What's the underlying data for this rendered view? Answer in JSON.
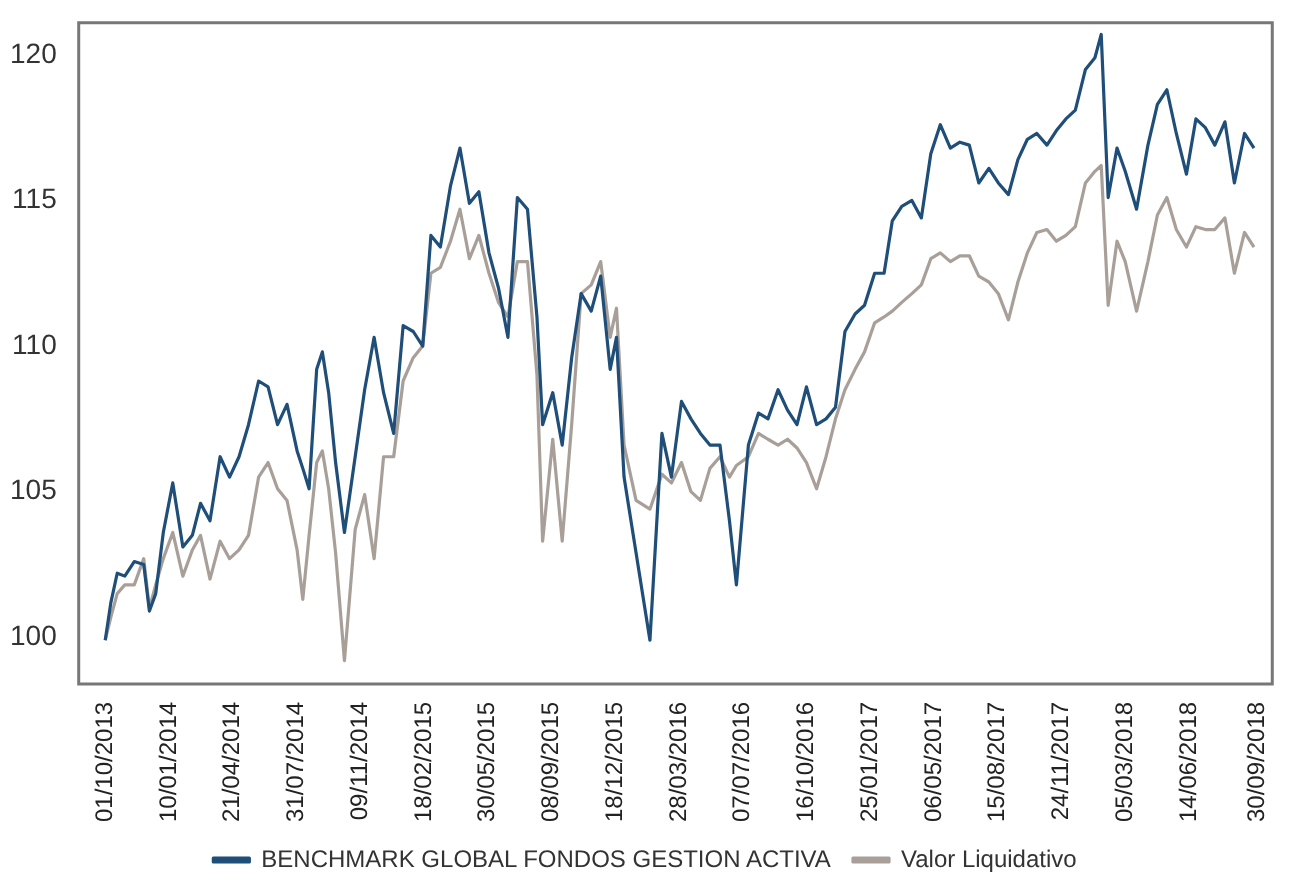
{
  "chart_data": {
    "type": "line",
    "legend": "bottom",
    "grid": false,
    "marker": "none",
    "line_style": "solid",
    "xlim": [
      "2013-08-20",
      "2018-10-24"
    ],
    "ylim": [
      98.4,
      121.1
    ],
    "yticks": [
      100,
      105,
      110,
      115,
      120
    ],
    "xticks": [
      {
        "value": "2013-10-01",
        "label": "01/10/2013"
      },
      {
        "value": "2014-01-10",
        "label": "10/01/2014"
      },
      {
        "value": "2014-04-21",
        "label": "21/04/2014"
      },
      {
        "value": "2014-07-31",
        "label": "31/07/2014"
      },
      {
        "value": "2014-11-09",
        "label": "09/11/2014"
      },
      {
        "value": "2015-02-18",
        "label": "18/02/2015"
      },
      {
        "value": "2015-05-30",
        "label": "30/05/2015"
      },
      {
        "value": "2015-09-08",
        "label": "08/09/2015"
      },
      {
        "value": "2015-12-18",
        "label": "18/12/2015"
      },
      {
        "value": "2016-03-28",
        "label": "28/03/2016"
      },
      {
        "value": "2016-07-07",
        "label": "07/07/2016"
      },
      {
        "value": "2016-10-16",
        "label": "16/10/2016"
      },
      {
        "value": "2017-01-25",
        "label": "25/01/2017"
      },
      {
        "value": "2017-05-06",
        "label": "06/05/2017"
      },
      {
        "value": "2017-08-15",
        "label": "15/08/2017"
      },
      {
        "value": "2017-11-24",
        "label": "24/11/2017"
      },
      {
        "value": "2018-03-05",
        "label": "05/03/2018"
      },
      {
        "value": "2018-06-14",
        "label": "14/06/2018"
      },
      {
        "value": "2018-09-30",
        "label": "30/09/2018"
      }
    ],
    "x": [
      "2013-10-01",
      "2013-10-10",
      "2013-10-20",
      "2013-11-01",
      "2013-11-16",
      "2013-12-01",
      "2013-12-10",
      "2013-12-20",
      "2014-01-01",
      "2014-01-16",
      "2014-02-01",
      "2014-02-16",
      "2014-03-01",
      "2014-03-16",
      "2014-04-01",
      "2014-04-16",
      "2014-05-01",
      "2014-05-16",
      "2014-06-01",
      "2014-06-16",
      "2014-07-01",
      "2014-07-16",
      "2014-08-01",
      "2014-08-10",
      "2014-08-20",
      "2014-09-01",
      "2014-09-10",
      "2014-09-20",
      "2014-10-01",
      "2014-10-15",
      "2014-11-01",
      "2014-11-16",
      "2014-12-01",
      "2014-12-16",
      "2015-01-01",
      "2015-01-16",
      "2015-02-01",
      "2015-02-16",
      "2015-03-01",
      "2015-03-16",
      "2015-04-01",
      "2015-04-16",
      "2015-05-01",
      "2015-05-16",
      "2015-06-01",
      "2015-06-16",
      "2015-07-01",
      "2015-07-16",
      "2015-08-01",
      "2015-08-16",
      "2015-08-25",
      "2015-09-10",
      "2015-09-25",
      "2015-10-10",
      "2015-10-25",
      "2015-11-10",
      "2015-11-25",
      "2015-12-10",
      "2015-12-20",
      "2016-01-01",
      "2016-01-20",
      "2016-02-11",
      "2016-03-01",
      "2016-03-16",
      "2016-04-01",
      "2016-04-16",
      "2016-05-01",
      "2016-05-16",
      "2016-06-01",
      "2016-06-16",
      "2016-06-27",
      "2016-07-16",
      "2016-08-01",
      "2016-08-16",
      "2016-09-01",
      "2016-09-16",
      "2016-10-01",
      "2016-10-16",
      "2016-11-01",
      "2016-11-16",
      "2016-12-01",
      "2016-12-16",
      "2017-01-01",
      "2017-01-16",
      "2017-02-01",
      "2017-02-16",
      "2017-03-01",
      "2017-03-16",
      "2017-04-01",
      "2017-04-16",
      "2017-05-01",
      "2017-05-16",
      "2017-06-01",
      "2017-06-16",
      "2017-07-01",
      "2017-07-16",
      "2017-08-01",
      "2017-08-16",
      "2017-09-01",
      "2017-09-16",
      "2017-10-01",
      "2017-10-16",
      "2017-11-01",
      "2017-11-16",
      "2017-12-01",
      "2017-12-16",
      "2018-01-01",
      "2018-01-16",
      "2018-01-26",
      "2018-02-06",
      "2018-02-20",
      "2018-03-05",
      "2018-03-23",
      "2018-04-10",
      "2018-04-25",
      "2018-05-10",
      "2018-05-25",
      "2018-06-10",
      "2018-06-25",
      "2018-07-10",
      "2018-07-25",
      "2018-08-10",
      "2018-08-25",
      "2018-09-10",
      "2018-09-25"
    ],
    "series": [
      {
        "name": "BENCHMARK GLOBAL FONDOS GESTION ACTIVA",
        "color": "#1f4e79",
        "values": [
          99.9,
          101.2,
          102.2,
          102.1,
          102.6,
          102.5,
          100.9,
          101.5,
          103.6,
          105.3,
          103.1,
          103.5,
          104.6,
          104.0,
          106.2,
          105.5,
          106.2,
          107.3,
          108.8,
          108.6,
          107.3,
          108.0,
          106.4,
          105.8,
          105.1,
          109.2,
          109.8,
          108.4,
          106.0,
          103.6,
          106.2,
          108.5,
          110.3,
          108.4,
          107.0,
          110.7,
          110.5,
          110.0,
          113.8,
          113.4,
          115.5,
          116.8,
          114.9,
          115.3,
          113.2,
          112.0,
          110.3,
          115.1,
          114.7,
          111.0,
          107.3,
          108.4,
          106.6,
          109.6,
          111.8,
          111.2,
          112.4,
          109.2,
          110.3,
          105.5,
          102.9,
          99.9,
          107.0,
          105.5,
          108.1,
          107.5,
          107.0,
          106.6,
          106.6,
          104.0,
          101.8,
          106.6,
          107.7,
          107.5,
          108.5,
          107.8,
          107.3,
          108.6,
          107.3,
          107.5,
          107.9,
          110.5,
          111.1,
          111.4,
          112.5,
          112.5,
          114.3,
          114.8,
          115.0,
          114.4,
          116.6,
          117.6,
          116.8,
          117.0,
          116.9,
          115.6,
          116.1,
          115.6,
          115.2,
          116.4,
          117.1,
          117.3,
          116.9,
          117.4,
          117.8,
          118.1,
          119.5,
          119.9,
          120.7,
          115.1,
          116.8,
          116.0,
          114.7,
          116.9,
          118.3,
          118.8,
          117.3,
          115.9,
          117.8,
          117.5,
          116.9,
          117.7,
          115.6,
          117.3,
          116.8
        ]
      },
      {
        "name": "Valor Liquidativo",
        "color": "#a89f99",
        "values": [
          99.9,
          100.7,
          101.5,
          101.8,
          101.8,
          102.7,
          101.0,
          101.8,
          102.7,
          103.6,
          102.1,
          103.0,
          103.5,
          102.0,
          103.3,
          102.7,
          103.0,
          103.5,
          105.5,
          106.0,
          105.1,
          104.7,
          103.0,
          101.3,
          103.5,
          106.0,
          106.4,
          105.1,
          102.9,
          99.2,
          103.7,
          104.9,
          102.7,
          106.2,
          106.2,
          108.8,
          109.6,
          110.0,
          112.5,
          112.7,
          113.6,
          114.7,
          113.0,
          113.8,
          112.5,
          111.5,
          111.0,
          112.9,
          112.9,
          109.0,
          103.3,
          106.8,
          103.3,
          107.3,
          111.8,
          112.1,
          112.9,
          110.3,
          111.3,
          106.6,
          104.7,
          104.4,
          105.6,
          105.3,
          106.0,
          105.0,
          104.7,
          105.8,
          106.2,
          105.5,
          105.9,
          106.2,
          107.0,
          106.8,
          106.6,
          106.8,
          106.5,
          106.0,
          105.1,
          106.2,
          107.5,
          108.5,
          109.2,
          109.8,
          110.8,
          111.0,
          111.2,
          111.5,
          111.8,
          112.1,
          113.0,
          113.2,
          112.9,
          113.1,
          113.1,
          112.4,
          112.2,
          111.8,
          110.9,
          112.2,
          113.2,
          113.9,
          114.0,
          113.6,
          113.8,
          114.1,
          115.6,
          116.0,
          116.2,
          111.4,
          113.6,
          112.9,
          111.2,
          112.9,
          114.5,
          115.1,
          114.0,
          113.4,
          114.1,
          114.0,
          114.0,
          114.4,
          112.5,
          113.9,
          113.4
        ]
      }
    ]
  }
}
